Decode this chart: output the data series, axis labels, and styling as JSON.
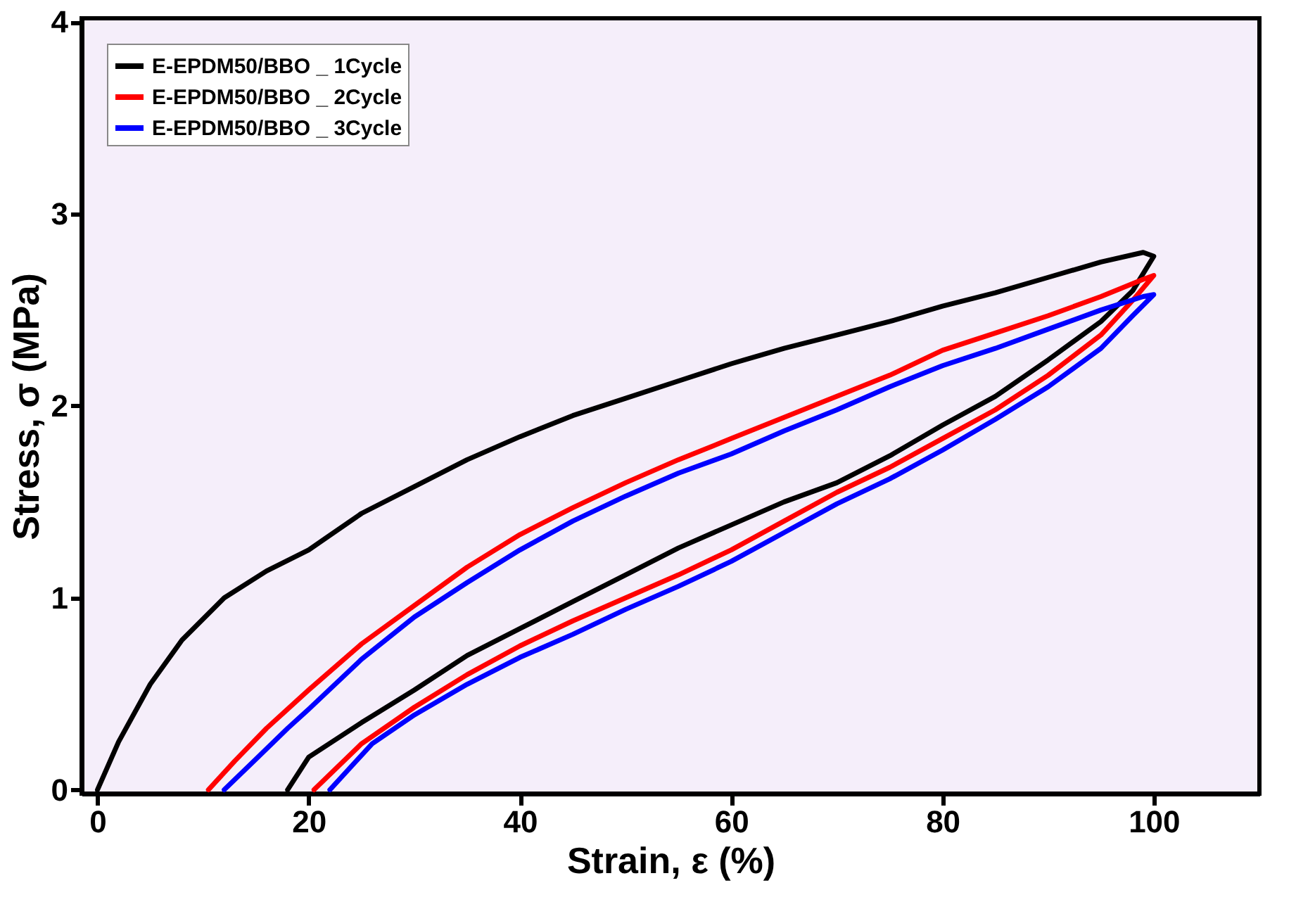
{
  "chart_data": {
    "type": "line",
    "xlabel": "Strain, ε (%)",
    "ylabel": "Stress, σ (MPa)",
    "xlim": [
      -1.5,
      110
    ],
    "ylim": [
      -0.02,
      4.02
    ],
    "xticks": [
      0,
      20,
      40,
      60,
      80,
      100
    ],
    "yticks": [
      0,
      1,
      2,
      3,
      4
    ],
    "grid": false,
    "legend": "top left",
    "line_style": "solid",
    "marker": "none",
    "series": [
      {
        "name": "E-EPDM50/BBO _ 1Cycle",
        "color": "#000000",
        "x": [
          0,
          2,
          5,
          8,
          12,
          16,
          20,
          25,
          30,
          35,
          40,
          45,
          50,
          55,
          60,
          65,
          70,
          75,
          80,
          85,
          90,
          95,
          99,
          100,
          98,
          95,
          90,
          85,
          80,
          75,
          70,
          65,
          60,
          55,
          50,
          45,
          40,
          35,
          30,
          25,
          20,
          18
        ],
        "values": [
          0,
          0.25,
          0.55,
          0.78,
          1.0,
          1.14,
          1.25,
          1.44,
          1.58,
          1.72,
          1.84,
          1.95,
          2.04,
          2.13,
          2.22,
          2.3,
          2.37,
          2.44,
          2.52,
          2.59,
          2.67,
          2.75,
          2.8,
          2.78,
          2.6,
          2.44,
          2.24,
          2.05,
          1.9,
          1.74,
          1.6,
          1.5,
          1.38,
          1.26,
          1.12,
          0.98,
          0.84,
          0.7,
          0.52,
          0.35,
          0.17,
          0
        ]
      },
      {
        "name": "E-EPDM50/BBO _ 2Cycle",
        "color": "#ff0000",
        "x": [
          10.5,
          13,
          16,
          20,
          25,
          30,
          35,
          40,
          45,
          50,
          55,
          60,
          65,
          70,
          75,
          80,
          85,
          90,
          95,
          99,
          100,
          98,
          95,
          90,
          85,
          80,
          75,
          70,
          65,
          60,
          55,
          50,
          45,
          40,
          35,
          30,
          25,
          20.5
        ],
        "values": [
          0,
          0.15,
          0.32,
          0.52,
          0.76,
          0.96,
          1.16,
          1.33,
          1.47,
          1.6,
          1.72,
          1.83,
          1.94,
          2.05,
          2.16,
          2.29,
          2.38,
          2.47,
          2.57,
          2.66,
          2.68,
          2.55,
          2.37,
          2.16,
          1.98,
          1.83,
          1.68,
          1.55,
          1.4,
          1.25,
          1.12,
          1.0,
          0.88,
          0.75,
          0.6,
          0.43,
          0.24,
          0
        ]
      },
      {
        "name": "E-EPDM50/BBO _ 3Cycle",
        "color": "#0000ff",
        "x": [
          12,
          15,
          18,
          20,
          25,
          30,
          35,
          40,
          45,
          50,
          55,
          60,
          65,
          70,
          75,
          80,
          85,
          90,
          95,
          99,
          100,
          98,
          95,
          90,
          85,
          80,
          75,
          70,
          65,
          60,
          55,
          50,
          45,
          40,
          35,
          30,
          26,
          22
        ],
        "values": [
          0,
          0.16,
          0.32,
          0.42,
          0.68,
          0.9,
          1.08,
          1.25,
          1.4,
          1.53,
          1.65,
          1.75,
          1.87,
          1.98,
          2.1,
          2.21,
          2.3,
          2.4,
          2.5,
          2.57,
          2.58,
          2.47,
          2.3,
          2.1,
          1.93,
          1.77,
          1.62,
          1.49,
          1.34,
          1.19,
          1.06,
          0.94,
          0.81,
          0.69,
          0.55,
          0.39,
          0.24,
          0
        ]
      }
    ]
  }
}
